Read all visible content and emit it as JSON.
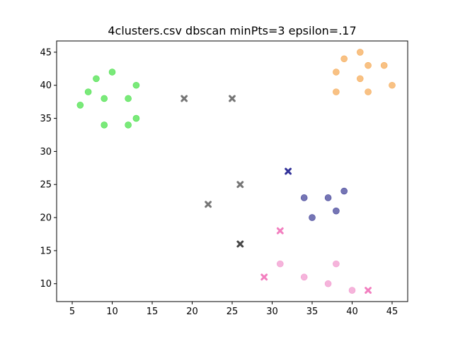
{
  "chart_data": {
    "type": "scatter",
    "title": "4clusters.csv dbscan minPts=3 epsilon=.17",
    "xlabel": "",
    "ylabel": "",
    "xlim": [
      3.05,
      46.95
    ],
    "ylim": [
      7.3,
      46.7
    ],
    "xticks": [
      5,
      10,
      15,
      20,
      25,
      30,
      35,
      40,
      45
    ],
    "yticks": [
      10,
      15,
      20,
      25,
      30,
      35,
      40,
      45
    ],
    "grid": false,
    "legend": "none",
    "series": [
      {
        "marker": "circle",
        "color": "#33dd33",
        "points": [
          [
            6,
            37
          ],
          [
            7,
            39
          ],
          [
            8,
            41
          ],
          [
            9,
            38
          ],
          [
            9,
            34
          ],
          [
            10,
            42
          ],
          [
            12,
            38
          ],
          [
            12,
            34
          ],
          [
            13,
            40
          ],
          [
            13,
            35
          ]
        ]
      },
      {
        "marker": "circle",
        "color": "#f5a042",
        "points": [
          [
            38,
            42
          ],
          [
            39,
            44
          ],
          [
            41,
            45
          ],
          [
            42,
            43
          ],
          [
            44,
            43
          ],
          [
            38,
            39
          ],
          [
            41,
            41
          ],
          [
            42,
            39
          ],
          [
            45,
            40
          ]
        ]
      },
      {
        "marker": "circle",
        "color": "#2b2b8c",
        "points": [
          [
            34,
            23
          ],
          [
            37,
            23
          ],
          [
            39,
            24
          ],
          [
            35,
            20
          ],
          [
            38,
            21
          ]
        ]
      },
      {
        "marker": "x",
        "color": "#000080",
        "points": [
          [
            32,
            27
          ]
        ]
      },
      {
        "marker": "circle",
        "color": "#f08cc8",
        "points": [
          [
            31,
            13
          ],
          [
            34,
            11
          ],
          [
            37,
            10
          ],
          [
            38,
            13
          ],
          [
            40,
            9
          ]
        ]
      },
      {
        "marker": "x",
        "color": "#f060b0",
        "points": [
          [
            31,
            18
          ],
          [
            29,
            11
          ],
          [
            42,
            9
          ]
        ]
      },
      {
        "marker": "x",
        "color": "#555555",
        "points": [
          [
            19,
            38
          ],
          [
            25,
            38
          ],
          [
            26,
            25
          ],
          [
            22,
            22
          ]
        ]
      },
      {
        "marker": "x",
        "color": "#1a1a1a",
        "points": [
          [
            26,
            16
          ]
        ]
      }
    ]
  }
}
